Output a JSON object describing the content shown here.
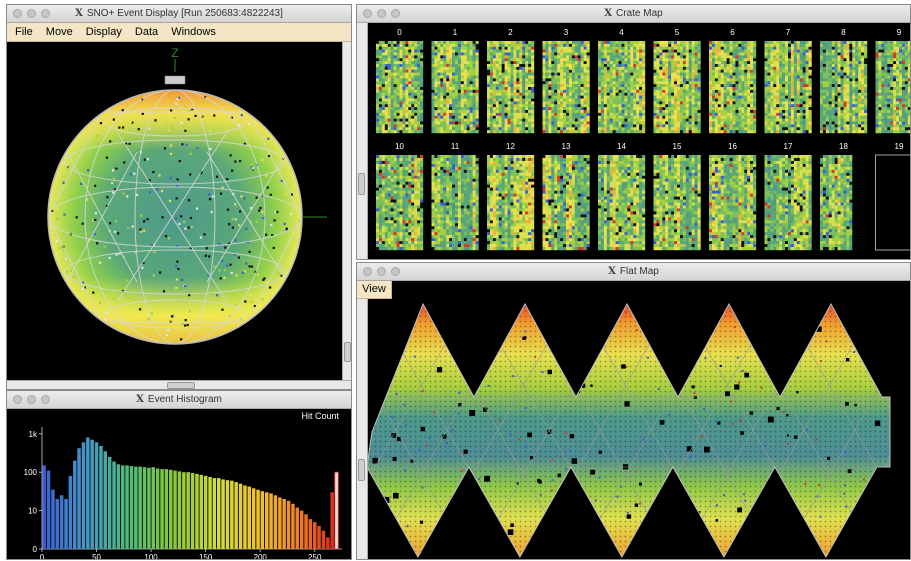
{
  "event_display": {
    "title": "SNO+ Event Display [Run 250683:4822243]",
    "menu": [
      "File",
      "Move",
      "Display",
      "Data",
      "Windows"
    ],
    "axis_label": "Z"
  },
  "crate_map": {
    "title": "Crate Map",
    "crates": [
      "0",
      "1",
      "2",
      "3",
      "4",
      "5",
      "6",
      "7",
      "8",
      "9",
      "10",
      "11",
      "12",
      "13",
      "14",
      "15",
      "16",
      "17",
      "18",
      "19"
    ]
  },
  "flat_map": {
    "title": "Flat Map",
    "view_button": "View"
  },
  "histogram": {
    "title": "Event Histogram",
    "label": "Hit Count",
    "chart_data": {
      "type": "bar",
      "y_scale": "log",
      "yticks": [
        "1k",
        "100",
        "10",
        "0"
      ],
      "xticks": [
        "0",
        "50",
        "100",
        "150",
        "200",
        "250"
      ],
      "xlim": [
        0,
        275
      ],
      "x": [
        2,
        6,
        10,
        14,
        18,
        22,
        26,
        30,
        34,
        38,
        42,
        46,
        50,
        54,
        58,
        62,
        66,
        70,
        74,
        78,
        82,
        86,
        90,
        94,
        98,
        102,
        106,
        110,
        114,
        118,
        122,
        126,
        130,
        134,
        138,
        142,
        146,
        150,
        154,
        158,
        162,
        166,
        170,
        174,
        178,
        182,
        186,
        190,
        194,
        198,
        202,
        206,
        210,
        214,
        218,
        222,
        226,
        230,
        234,
        238,
        242,
        246,
        250,
        254,
        258,
        262,
        266,
        270
      ],
      "values": [
        150,
        110,
        35,
        20,
        25,
        20,
        80,
        200,
        420,
        600,
        800,
        700,
        600,
        480,
        350,
        250,
        190,
        160,
        150,
        150,
        145,
        140,
        140,
        135,
        130,
        135,
        125,
        120,
        120,
        115,
        110,
        105,
        100,
        100,
        95,
        90,
        85,
        80,
        75,
        70,
        70,
        65,
        62,
        60,
        55,
        50,
        45,
        42,
        38,
        35,
        32,
        30,
        28,
        25,
        22,
        20,
        18,
        15,
        12,
        10,
        8,
        6,
        5,
        4,
        3,
        2,
        30,
        100
      ],
      "colors": "rainbow-blue-to-red"
    }
  }
}
